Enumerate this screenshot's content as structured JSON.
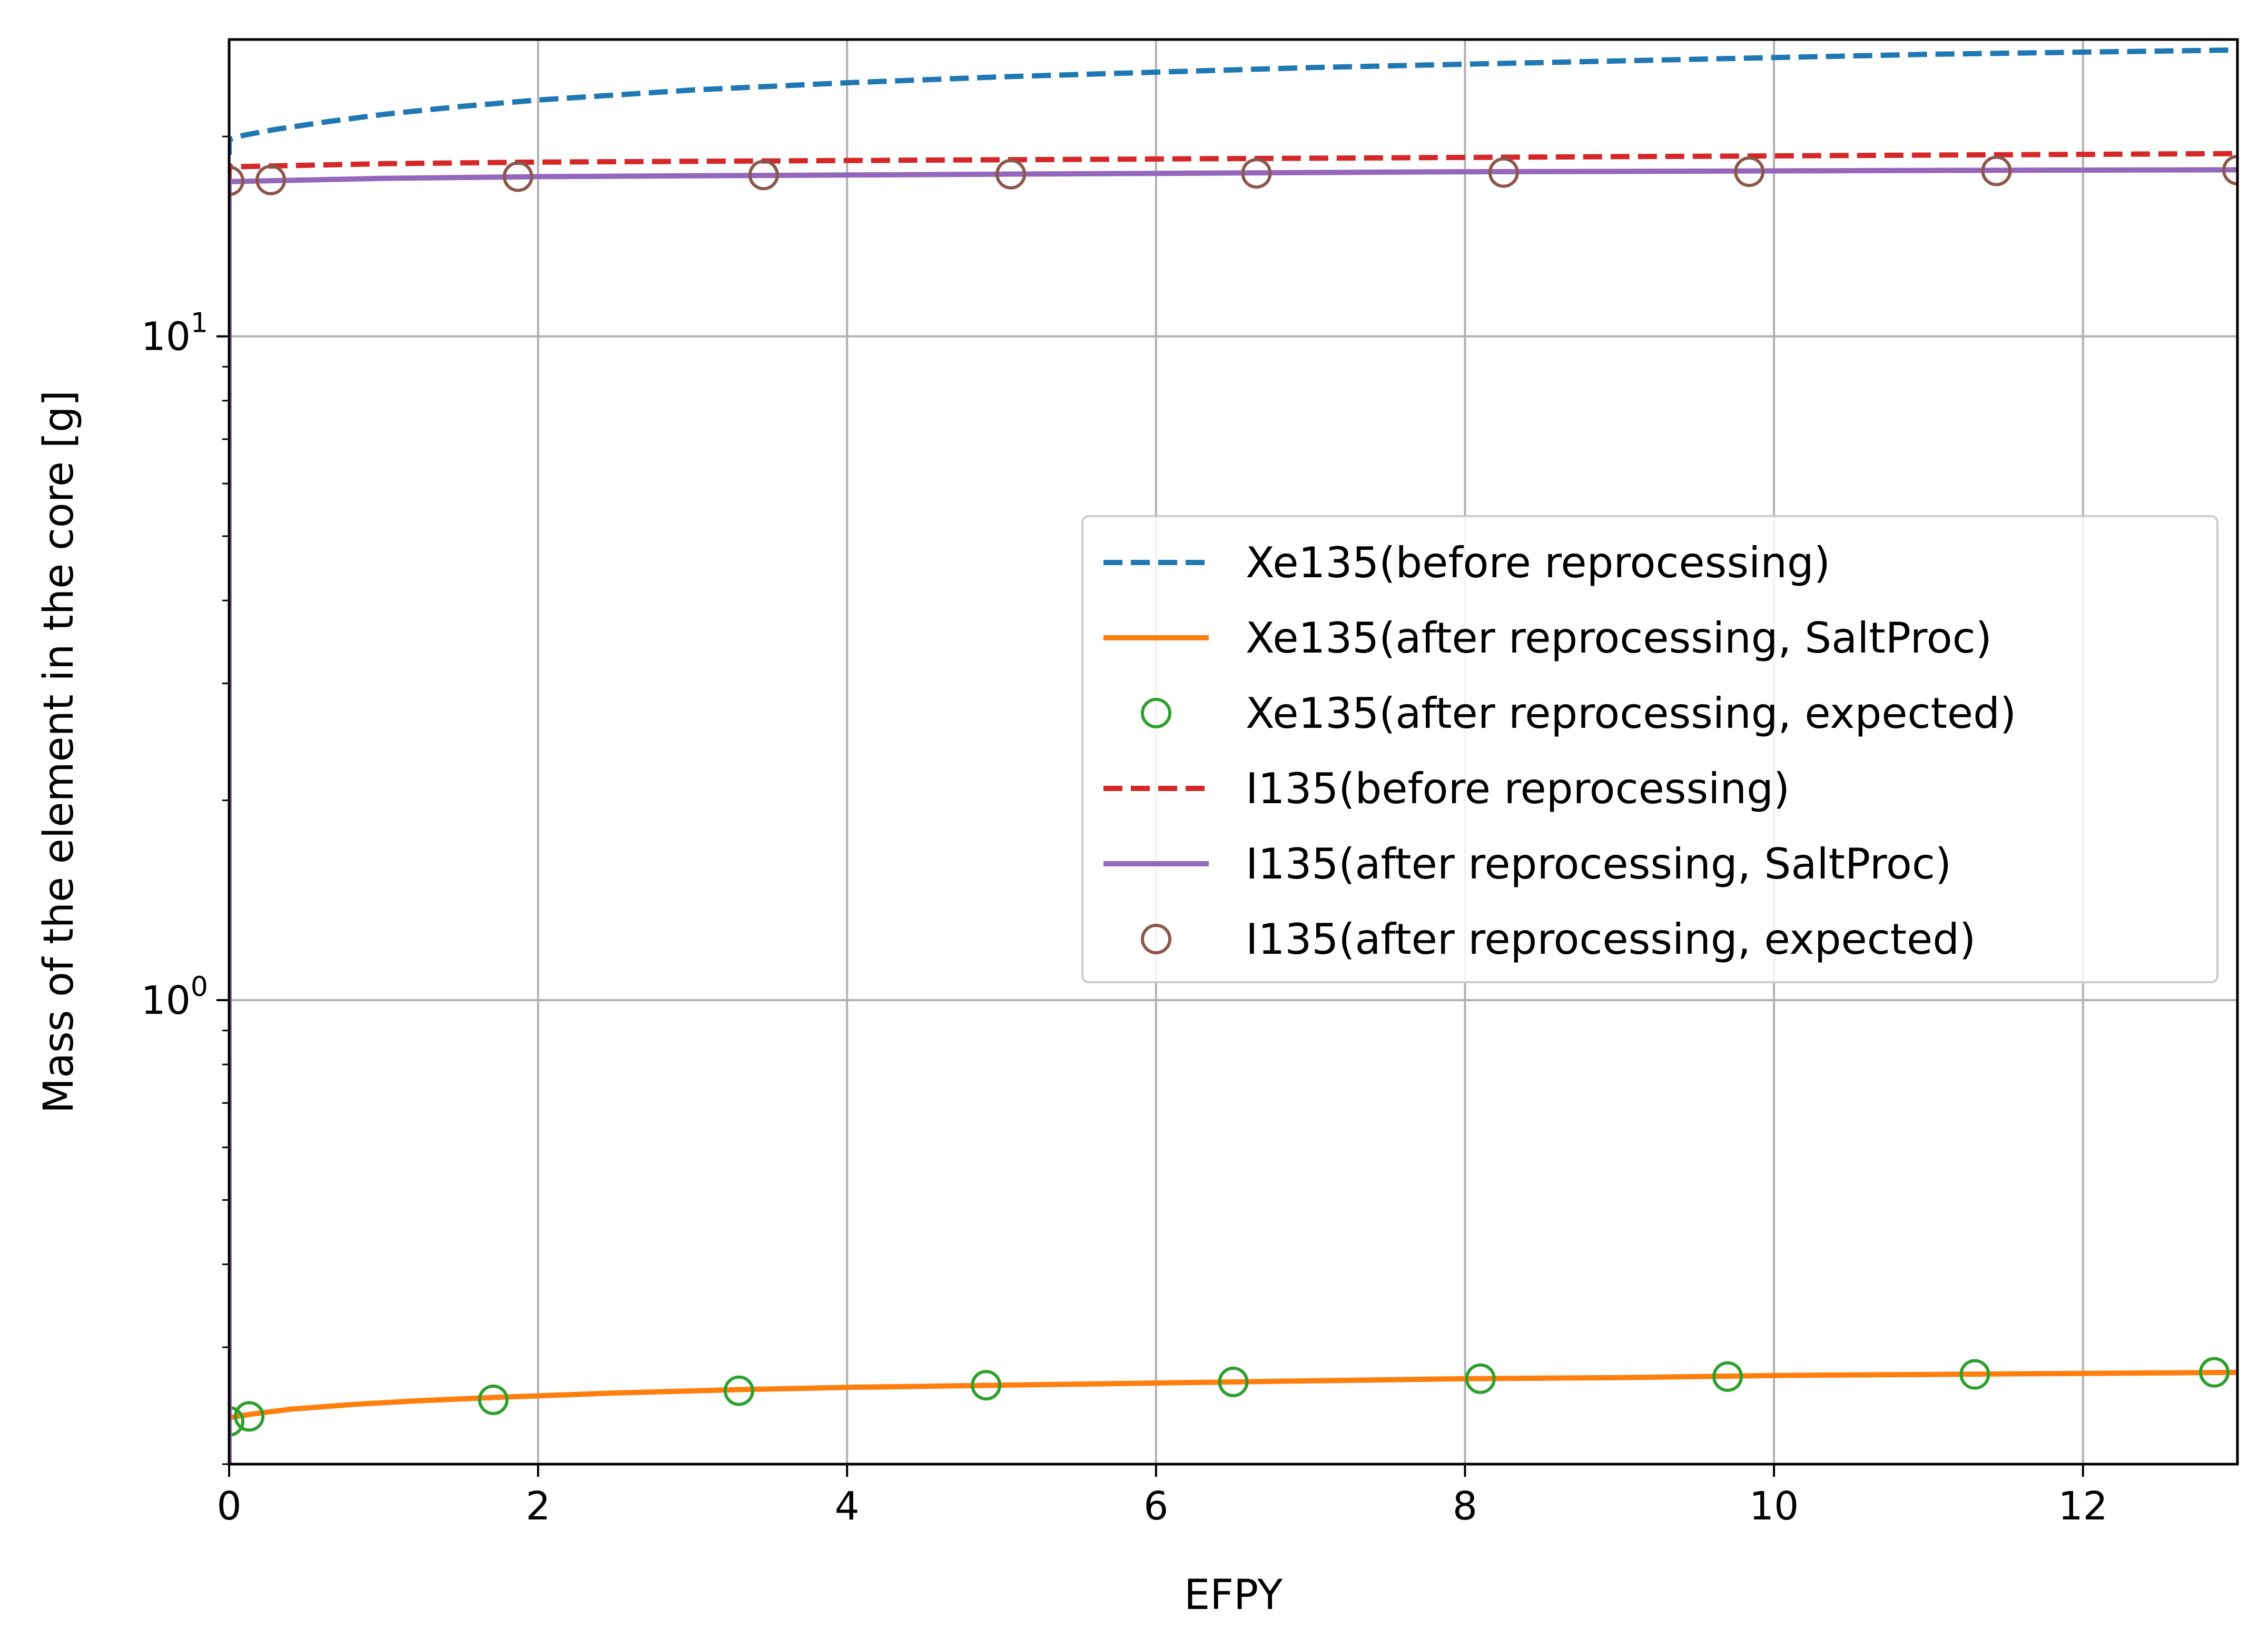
{
  "chart_data": {
    "type": "line",
    "xlabel": "EFPY",
    "ylabel": "Mass of the element in the core [g]",
    "xlim": [
      0,
      13
    ],
    "ylim": [
      0.2,
      28
    ],
    "yscale": "log",
    "grid": true,
    "legend_position": "center-right",
    "x_ticks": [
      {
        "value": 0,
        "label": "0"
      },
      {
        "value": 2,
        "label": "2"
      },
      {
        "value": 4,
        "label": "4"
      },
      {
        "value": 6,
        "label": "6"
      },
      {
        "value": 8,
        "label": "8"
      },
      {
        "value": 10,
        "label": "10"
      },
      {
        "value": 12,
        "label": "12"
      }
    ],
    "y_ticks": [
      {
        "value": 1,
        "base": "10",
        "exp": "0"
      },
      {
        "value": 10,
        "base": "10",
        "exp": "1"
      }
    ],
    "series": [
      {
        "name": "Xe135(before reprocessing)",
        "style": "dashed",
        "color": "#1f77b4",
        "x": [
          0,
          0.1,
          0.3,
          0.6,
          1,
          1.5,
          2,
          3,
          4,
          5,
          6,
          7,
          8,
          9,
          10,
          11,
          12,
          13
        ],
        "y": [
          19.8,
          20.1,
          20.5,
          21.0,
          21.6,
          22.2,
          22.7,
          23.5,
          24.1,
          24.6,
          25.0,
          25.4,
          25.7,
          26.0,
          26.3,
          26.6,
          26.8,
          27.0
        ]
      },
      {
        "name": "Xe135(after reprocessing, SaltProc)",
        "style": "solid",
        "color": "#ff7f0e",
        "x": [
          0,
          0.15,
          0.4,
          0.8,
          1.2,
          1.7,
          2.5,
          3.3,
          4,
          5,
          6,
          7,
          8,
          9,
          10,
          11,
          12,
          13
        ],
        "y": [
          0.235,
          0.238,
          0.242,
          0.246,
          0.249,
          0.252,
          0.256,
          0.259,
          0.261,
          0.263,
          0.265,
          0.267,
          0.269,
          0.27,
          0.272,
          0.273,
          0.274,
          0.275
        ]
      },
      {
        "name": "Xe135(after reprocessing, expected)",
        "style": "markers",
        "color": "#2ca02c",
        "x": [
          0,
          0.13,
          1.71,
          3.3,
          4.9,
          6.5,
          8.1,
          9.7,
          11.3,
          12.85
        ],
        "y": [
          0.232,
          0.236,
          0.25,
          0.258,
          0.263,
          0.266,
          0.269,
          0.271,
          0.273,
          0.275
        ]
      },
      {
        "name": "I135(before reprocessing)",
        "style": "dashed",
        "color": "#d62728",
        "x": [
          0,
          0.5,
          1,
          2,
          3,
          4,
          5,
          6,
          7,
          8,
          9,
          10,
          11,
          12,
          13
        ],
        "y": [
          18.0,
          18.1,
          18.2,
          18.3,
          18.35,
          18.4,
          18.45,
          18.5,
          18.55,
          18.6,
          18.65,
          18.7,
          18.75,
          18.8,
          18.85
        ]
      },
      {
        "name": "I135(after reprocessing, SaltProc)",
        "style": "solid",
        "color": "#9467bd",
        "x": [
          0,
          0.5,
          1,
          2,
          3,
          4,
          5,
          6,
          7,
          8,
          9,
          10,
          11,
          12,
          13
        ],
        "y": [
          17.1,
          17.2,
          17.3,
          17.4,
          17.45,
          17.5,
          17.55,
          17.6,
          17.65,
          17.7,
          17.72,
          17.75,
          17.78,
          17.8,
          17.82
        ]
      },
      {
        "name": "I135(after reprocessing, expected)",
        "style": "markers",
        "color": "#8c564b",
        "x": [
          0,
          0.27,
          1.87,
          3.46,
          5.06,
          6.65,
          8.25,
          9.84,
          11.44,
          13.0
        ],
        "y": [
          17.15,
          17.2,
          17.4,
          17.5,
          17.55,
          17.6,
          17.65,
          17.7,
          17.75,
          17.8
        ]
      }
    ]
  }
}
